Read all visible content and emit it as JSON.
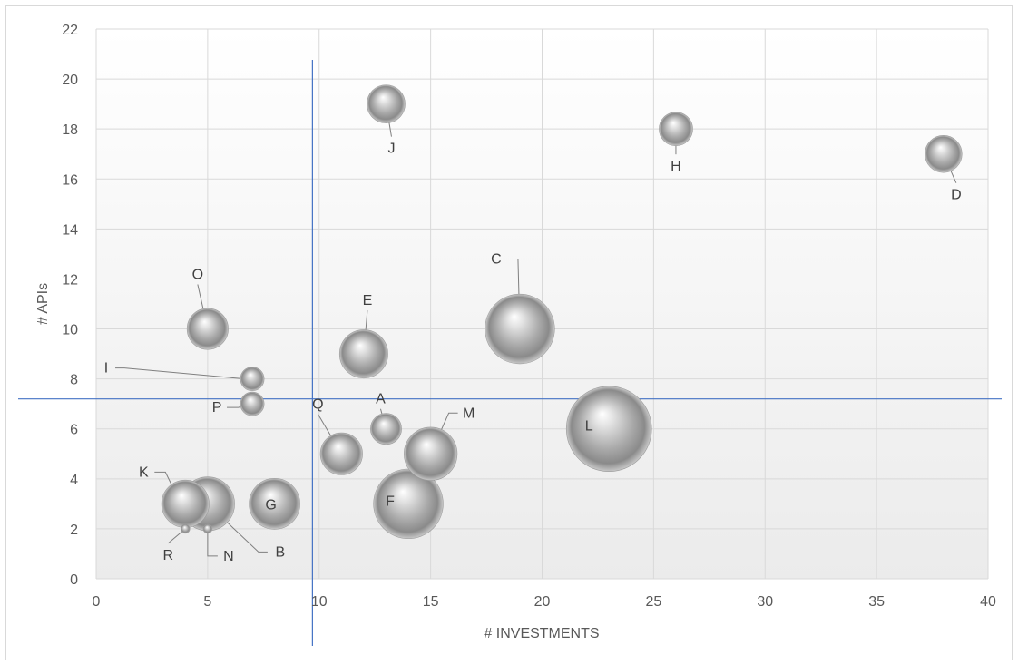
{
  "chart_data": {
    "type": "bubble",
    "title": "",
    "xlabel": "# INVESTMENTS",
    "ylabel": "# APIs",
    "xlim": [
      0,
      40
    ],
    "ylim": [
      0,
      22
    ],
    "x_ticks": [
      0,
      5,
      10,
      15,
      20,
      25,
      30,
      35,
      40
    ],
    "y_ticks": [
      0,
      2,
      4,
      6,
      8,
      10,
      12,
      14,
      16,
      18,
      20,
      22
    ],
    "grid": true,
    "legend": "none",
    "reference_lines": {
      "x": 9.7,
      "y": 7.2
    },
    "colors": {
      "grid": "#d9d9d9",
      "reference_line": "#4472c4",
      "bubble": "#a6a6a6"
    },
    "points": [
      {
        "label": "A",
        "x": 13,
        "y": 6,
        "size": 1.2
      },
      {
        "label": "B",
        "x": 5,
        "y": 3,
        "size": 3.6
      },
      {
        "label": "C",
        "x": 19,
        "y": 10,
        "size": 6.0
      },
      {
        "label": "D",
        "x": 38,
        "y": 17,
        "size": 1.7
      },
      {
        "label": "E",
        "x": 12,
        "y": 9,
        "size": 2.9
      },
      {
        "label": "F",
        "x": 14,
        "y": 3,
        "size": 6.0
      },
      {
        "label": "G",
        "x": 8,
        "y": 3,
        "size": 3.2
      },
      {
        "label": "H",
        "x": 26,
        "y": 18,
        "size": 1.4
      },
      {
        "label": "I",
        "x": 7,
        "y": 8,
        "size": 0.7
      },
      {
        "label": "J",
        "x": 13,
        "y": 19,
        "size": 1.8
      },
      {
        "label": "K",
        "x": 4,
        "y": 3,
        "size": 2.8
      },
      {
        "label": "L",
        "x": 23,
        "y": 6,
        "size": 9.0
      },
      {
        "label": "M",
        "x": 15,
        "y": 5,
        "size": 3.5
      },
      {
        "label": "N",
        "x": 5,
        "y": 2,
        "size": 0.1
      },
      {
        "label": "O",
        "x": 5,
        "y": 10,
        "size": 2.1
      },
      {
        "label": "P",
        "x": 7,
        "y": 7,
        "size": 0.7
      },
      {
        "label": "Q",
        "x": 11,
        "y": 5,
        "size": 2.2
      },
      {
        "label": "R",
        "x": 4,
        "y": 2,
        "size": 0.1
      }
    ]
  }
}
